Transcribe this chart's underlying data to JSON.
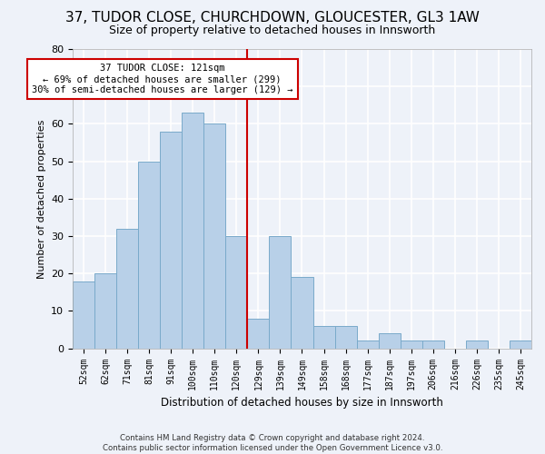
{
  "title1": "37, TUDOR CLOSE, CHURCHDOWN, GLOUCESTER, GL3 1AW",
  "title2": "Size of property relative to detached houses in Innsworth",
  "xlabel": "Distribution of detached houses by size in Innsworth",
  "ylabel": "Number of detached properties",
  "categories": [
    "52sqm",
    "62sqm",
    "71sqm",
    "81sqm",
    "91sqm",
    "100sqm",
    "110sqm",
    "120sqm",
    "129sqm",
    "139sqm",
    "149sqm",
    "158sqm",
    "168sqm",
    "177sqm",
    "187sqm",
    "197sqm",
    "206sqm",
    "216sqm",
    "226sqm",
    "235sqm",
    "245sqm"
  ],
  "values": [
    18,
    20,
    32,
    50,
    58,
    63,
    60,
    30,
    8,
    30,
    19,
    6,
    6,
    2,
    4,
    2,
    2,
    0,
    2,
    0,
    2
  ],
  "bar_color": "#b8d0e8",
  "bar_edge_color": "#7aaaca",
  "vline_x": 7.5,
  "vline_color": "#cc0000",
  "annotation_lines": [
    "37 TUDOR CLOSE: 121sqm",
    "← 69% of detached houses are smaller (299)",
    "30% of semi-detached houses are larger (129) →"
  ],
  "annotation_box_color": "#ffffff",
  "annotation_box_edge": "#cc0000",
  "ylim": [
    0,
    80
  ],
  "yticks": [
    0,
    10,
    20,
    30,
    40,
    50,
    60,
    70,
    80
  ],
  "footer_line1": "Contains HM Land Registry data © Crown copyright and database right 2024.",
  "footer_line2": "Contains public sector information licensed under the Open Government Licence v3.0.",
  "bg_color": "#eef2f9",
  "grid_color": "#ffffff",
  "title1_fontsize": 11,
  "title2_fontsize": 9
}
